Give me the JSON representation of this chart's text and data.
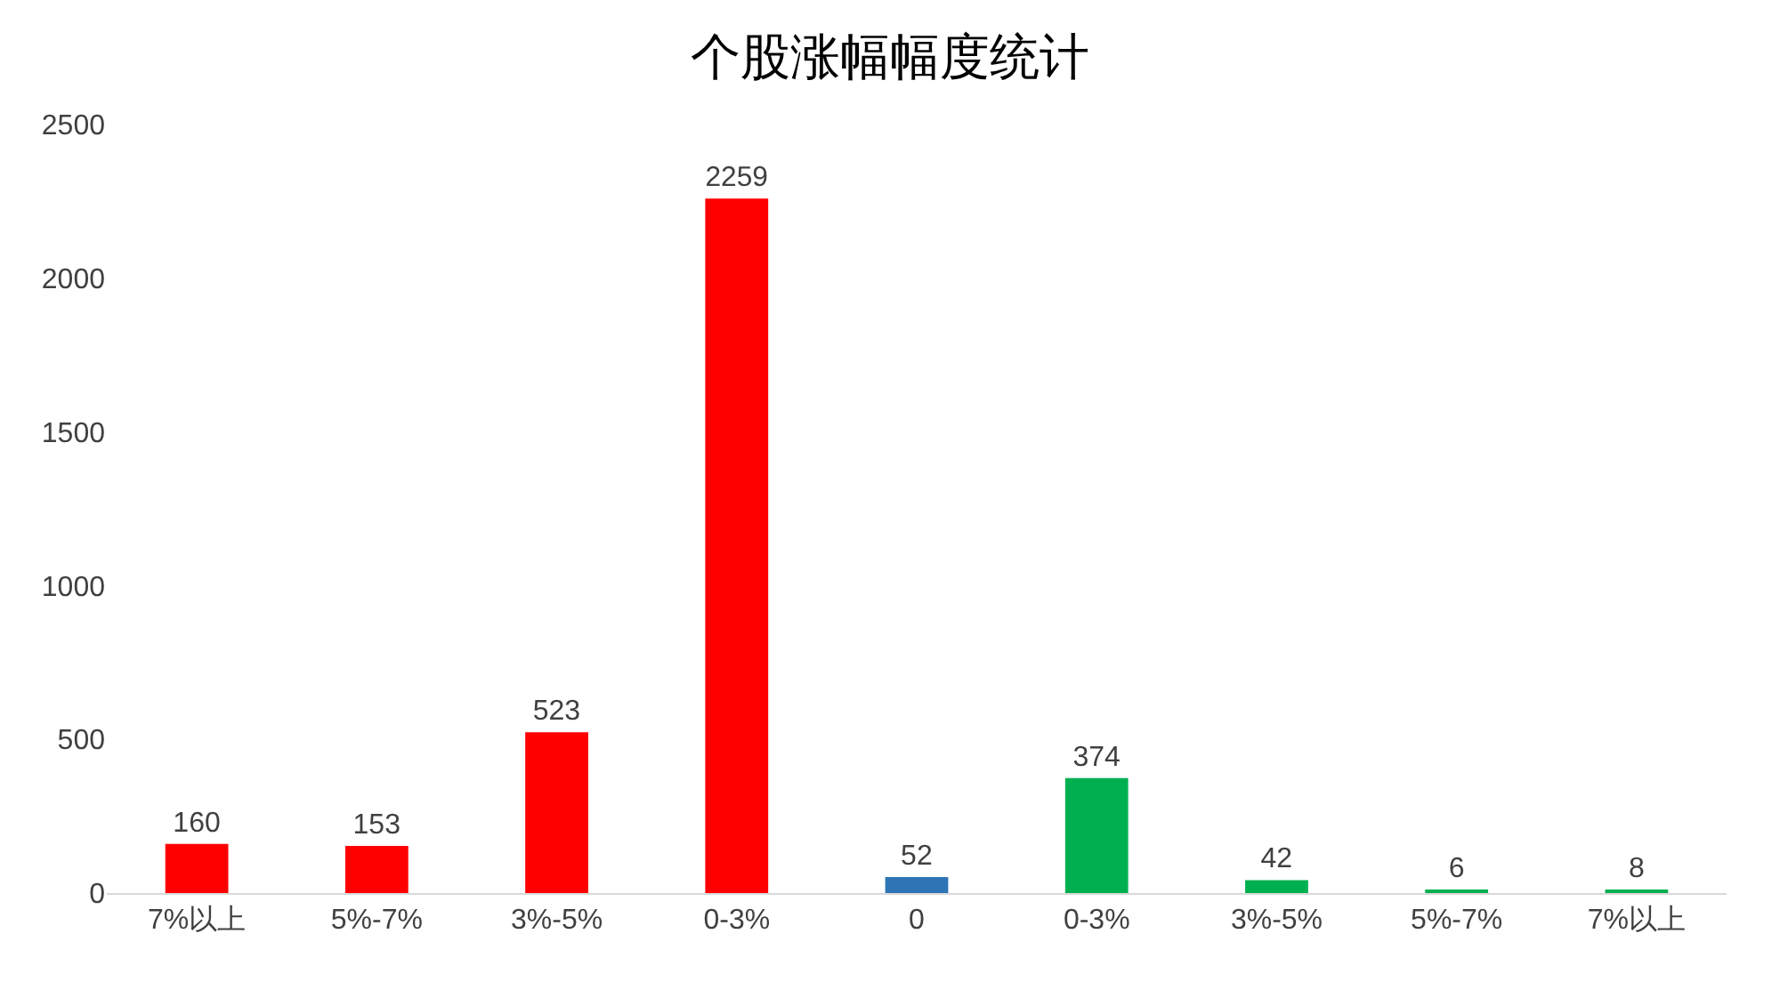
{
  "chart_data": {
    "type": "bar",
    "title": "个股涨幅幅度统计",
    "categories": [
      "7%以上",
      "5%-7%",
      "3%-5%",
      "0-3%",
      "0",
      "0-3%",
      "3%-5%",
      "5%-7%",
      "7%以上"
    ],
    "values": [
      160,
      153,
      523,
      2259,
      52,
      374,
      42,
      6,
      8
    ],
    "colors": [
      "#ff0000",
      "#ff0000",
      "#ff0000",
      "#ff0000",
      "#2e75b6",
      "#00b050",
      "#00b050",
      "#00b050",
      "#00b050"
    ],
    "ylim": [
      0,
      2500
    ],
    "yticks": [
      0,
      500,
      1000,
      1500,
      2000,
      2500
    ],
    "data_labels": true
  }
}
